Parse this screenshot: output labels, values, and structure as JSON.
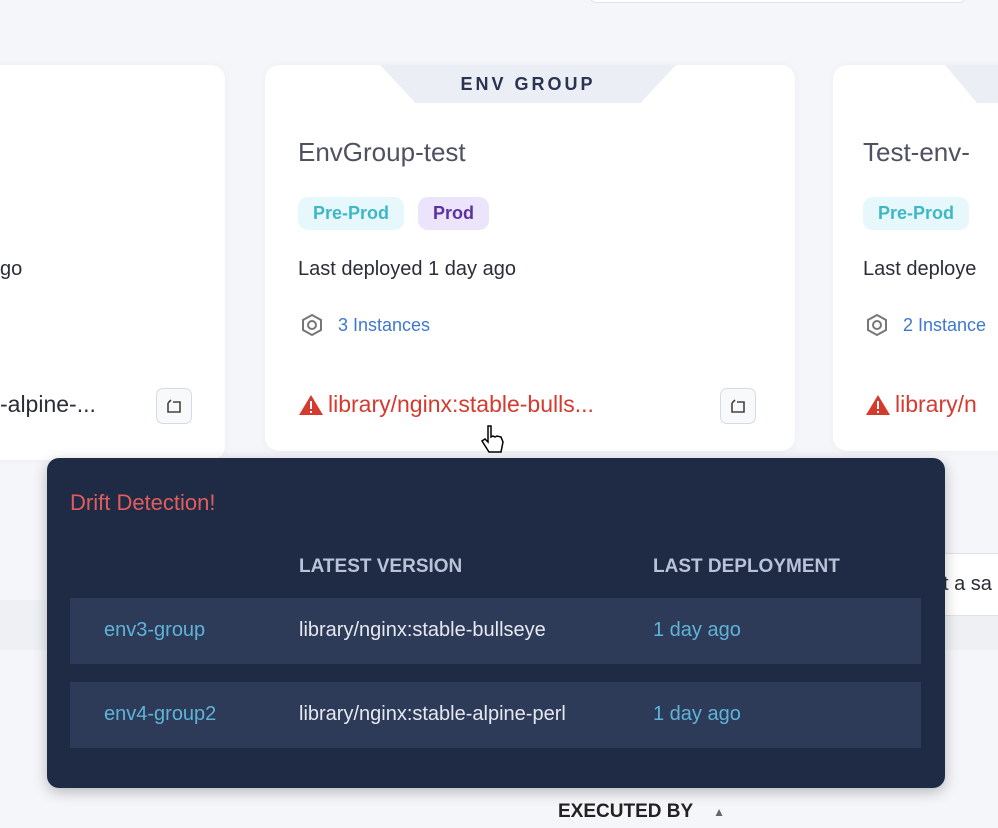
{
  "cards": [
    {
      "last_deployed_partial": "go",
      "artifact_partial": "-alpine-..."
    },
    {
      "group_label": "ENV GROUP",
      "title": "EnvGroup-test",
      "tags": [
        "Pre-Prod",
        "Prod"
      ],
      "last_deployed": "Last deployed 1 day ago",
      "instances": "3 Instances",
      "artifact": "library/nginx:stable-bulls...",
      "instances_icon": "hexagon-icon",
      "artifact_icon": "warning-triangle-icon",
      "action_icon": "copy-icon"
    },
    {
      "title": "Test-env-",
      "tags": [
        "Pre-Prod"
      ],
      "last_deployed": "Last deploye",
      "instances": "2 Instance",
      "artifact": "library/n"
    }
  ],
  "background": {
    "partial_text": "t a sa",
    "column_header": "EXECUTED BY",
    "sort_icon": "triangle-up-icon"
  },
  "popover": {
    "title": "Drift Detection!",
    "headers": [
      "",
      "LATEST VERSION",
      "LAST DEPLOYMENT"
    ],
    "rows": [
      {
        "env": "env3-group",
        "version": "library/nginx:stable-bullseye",
        "deployed": "1 day ago"
      },
      {
        "env": "env4-group2",
        "version": "library/nginx:stable-alpine-perl",
        "deployed": "1 day ago"
      }
    ]
  },
  "colors": {
    "warning": "#d53a2f",
    "popover_bg": "#1f2b45",
    "link": "#5fb3d8"
  }
}
